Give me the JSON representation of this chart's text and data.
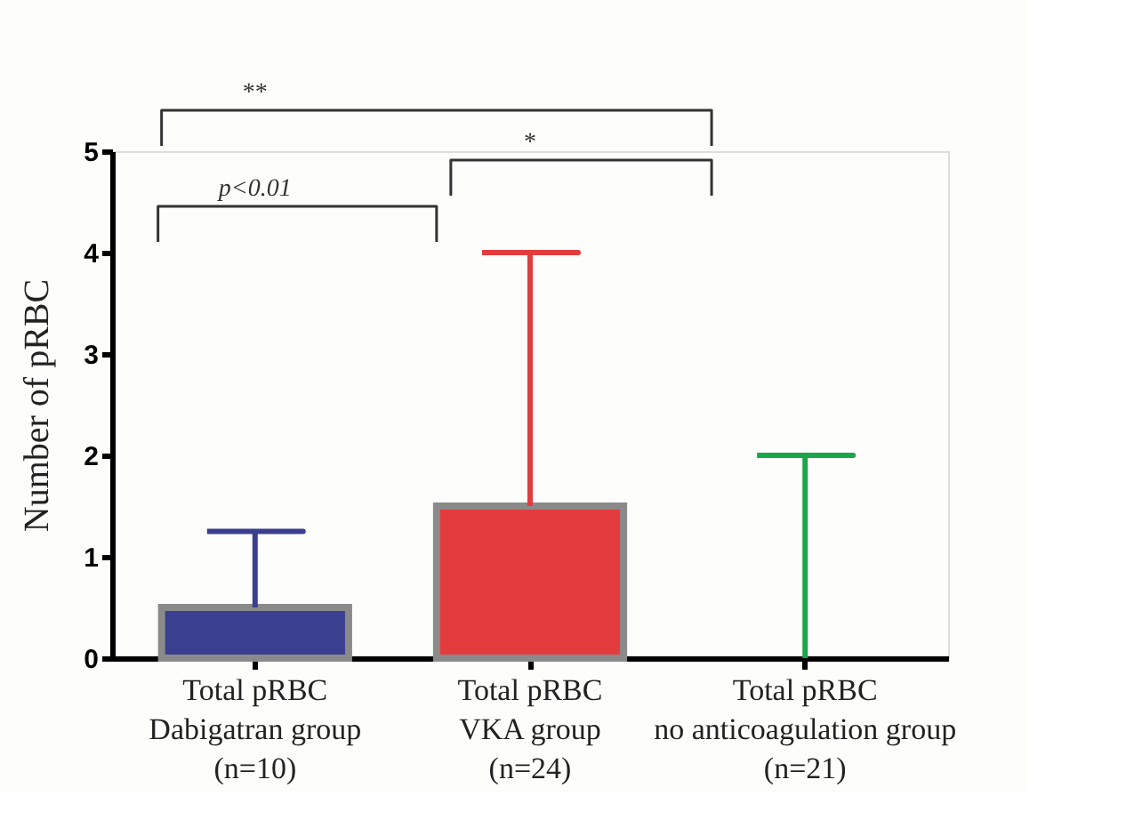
{
  "chart_data": {
    "type": "bar",
    "ylabel": "Number of pRBC",
    "categories": [
      "Total pRBC\nDabigatran group\n(n=10)",
      "Total pRBC\nVKA group\n(n=24)",
      "Total pRBC\nno anticoagulation group\n(n=21)"
    ],
    "values": [
      0.5,
      1.5,
      0
    ],
    "colors": [
      "#3b3f8f",
      "#e43c3e",
      "#1aa64a"
    ],
    "errors": [
      [
        0.5,
        1.25
      ],
      [
        1.5,
        4
      ],
      [
        0,
        2
      ]
    ],
    "ylim": [
      0,
      5
    ],
    "yticks": [
      0,
      1,
      2,
      3,
      4,
      5
    ],
    "grid": false,
    "legend": false,
    "annotations": [
      "p<0.01",
      "*",
      "**"
    ]
  }
}
